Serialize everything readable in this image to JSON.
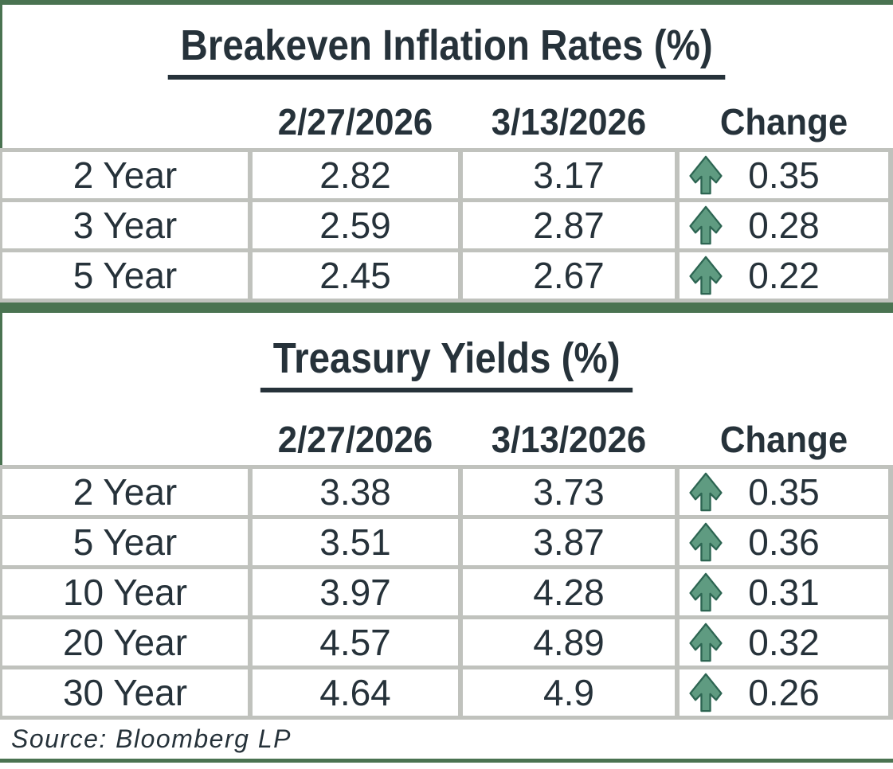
{
  "tables": [
    {
      "name": "breakeven-inflation-rates",
      "title": "Breakeven Inflation Rates (%)",
      "columns": [
        "2/27/2026",
        "3/13/2026",
        "Change"
      ],
      "rows": [
        {
          "label": "2 Year",
          "v1": "2.82",
          "v2": "3.17",
          "change": "0.35",
          "direction": "up"
        },
        {
          "label": "3 Year",
          "v1": "2.59",
          "v2": "2.87",
          "change": "0.28",
          "direction": "up"
        },
        {
          "label": "5 Year",
          "v1": "2.45",
          "v2": "2.67",
          "change": "0.22",
          "direction": "up"
        }
      ]
    },
    {
      "name": "treasury-yields",
      "title": "Treasury Yields (%)",
      "columns": [
        "2/27/2026",
        "3/13/2026",
        "Change"
      ],
      "rows": [
        {
          "label": "2 Year",
          "v1": "3.38",
          "v2": "3.73",
          "change": "0.35",
          "direction": "up"
        },
        {
          "label": "5 Year",
          "v1": "3.51",
          "v2": "3.87",
          "change": "0.36",
          "direction": "up"
        },
        {
          "label": "10 Year",
          "v1": "3.97",
          "v2": "4.28",
          "change": "0.31",
          "direction": "up"
        },
        {
          "label": "20 Year",
          "v1": "4.57",
          "v2": "4.89",
          "change": "0.32",
          "direction": "up"
        },
        {
          "label": "30 Year",
          "v1": "4.64",
          "v2": "4.9",
          "change": "0.26",
          "direction": "up"
        }
      ]
    }
  ],
  "source_note": "Source: Bloomberg LP",
  "icons": {
    "up_arrow": "up-arrow-icon"
  },
  "colors": {
    "accent_green": "#4A7351",
    "grid_gray": "#C0C2BD",
    "text": "#26323A",
    "arrow_fill": "#5F9B81",
    "arrow_stroke": "#2D6552",
    "background": "#FFFFFF"
  }
}
